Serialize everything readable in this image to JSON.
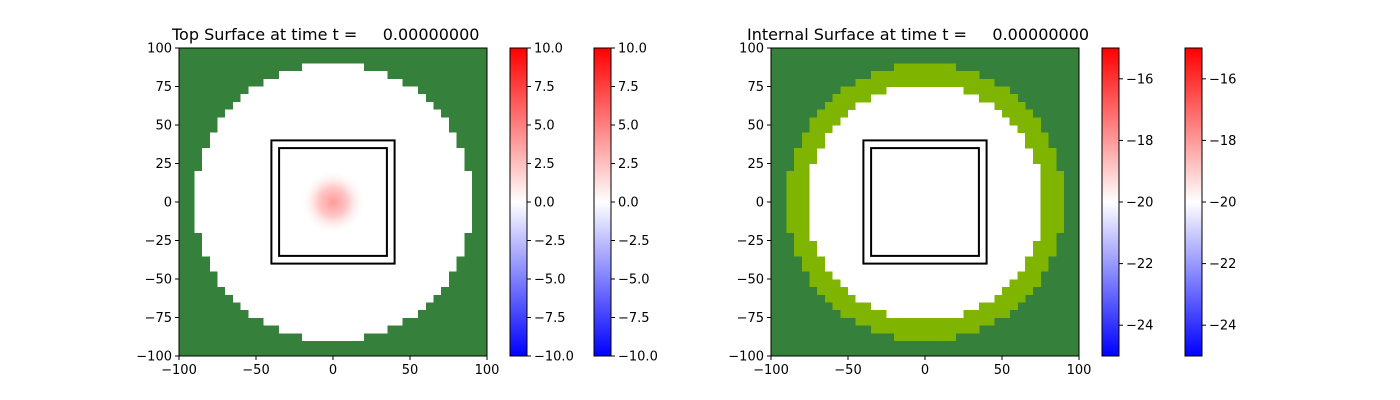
{
  "chart_data": [
    {
      "type": "heatmap",
      "title": "Top Surface at time t =     0.00000000",
      "xlabel": "",
      "ylabel": "",
      "xlim": [
        -100,
        100
      ],
      "ylim": [
        -100,
        100
      ],
      "xticks": [
        -100,
        -50,
        0,
        50,
        100
      ],
      "yticks": [
        -100,
        -75,
        -50,
        -25,
        0,
        25,
        50,
        75,
        100
      ],
      "grid": false,
      "background_color": "#35803a",
      "field": {
        "circle_radius": 90,
        "interior_value": 0,
        "ring_width": 0,
        "ring_color": "#7fb500",
        "bump": {
          "center": [
            0,
            0
          ],
          "peak_value": 4,
          "sigma": 7
        }
      },
      "outlines": [
        {
          "xmin": -40,
          "xmax": 40,
          "ymin": -40,
          "ymax": 40
        },
        {
          "xmin": -35,
          "xmax": 35,
          "ymin": -35,
          "ymax": 35
        }
      ],
      "colorbars": [
        {
          "min": -10,
          "max": 10,
          "ticks": [
            -10,
            -7.5,
            -5,
            -2.5,
            0,
            2.5,
            5,
            7.5,
            10
          ],
          "tick_labels": [
            "−10.0",
            "−7.5",
            "−5.0",
            "−2.5",
            "0.0",
            "2.5",
            "5.0",
            "7.5",
            "10.0"
          ],
          "colormap": "bwr"
        },
        {
          "min": -10,
          "max": 10,
          "ticks": [
            -10,
            -7.5,
            -5,
            -2.5,
            0,
            2.5,
            5,
            7.5,
            10
          ],
          "tick_labels": [
            "−10.0",
            "−7.5",
            "−5.0",
            "−2.5",
            "0.0",
            "2.5",
            "5.0",
            "7.5",
            "10.0"
          ],
          "colormap": "bwr"
        }
      ]
    },
    {
      "type": "heatmap",
      "title": "Internal Surface at time t =     0.00000000",
      "xlabel": "",
      "ylabel": "",
      "xlim": [
        -100,
        100
      ],
      "ylim": [
        -100,
        100
      ],
      "xticks": [
        -100,
        -50,
        0,
        50,
        100
      ],
      "yticks": [
        -100,
        -75,
        -50,
        -25,
        0,
        25,
        50,
        75,
        100
      ],
      "grid": false,
      "background_color": "#35803a",
      "field": {
        "circle_radius": 77,
        "interior_value": -20,
        "ring_width": 13,
        "ring_color": "#7fb500",
        "bump": null
      },
      "outlines": [
        {
          "xmin": -40,
          "xmax": 40,
          "ymin": -40,
          "ymax": 40
        },
        {
          "xmin": -35,
          "xmax": 35,
          "ymin": -35,
          "ymax": 35
        }
      ],
      "colorbars": [
        {
          "min": -25,
          "max": -15,
          "ticks": [
            -24,
            -22,
            -20,
            -18,
            -16
          ],
          "tick_labels": [
            "−24",
            "−22",
            "−20",
            "−18",
            "−16"
          ],
          "colormap": "bwr"
        },
        {
          "min": -25,
          "max": -15,
          "ticks": [
            -24,
            -22,
            -20,
            -18,
            -16
          ],
          "tick_labels": [
            "−24",
            "−22",
            "−20",
            "−18",
            "−16"
          ],
          "colormap": "bwr"
        }
      ]
    }
  ]
}
